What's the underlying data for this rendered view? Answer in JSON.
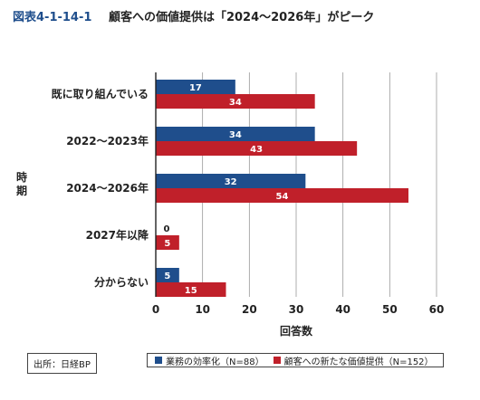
{
  "figure": {
    "id": "図表4-1-14-1",
    "title": "顧客への価値提供は「2024〜2026年」がピーク"
  },
  "chart_data": {
    "type": "bar",
    "orientation": "horizontal",
    "categories": [
      "既に取り組んでいる",
      "2022〜2023年",
      "2024〜2026年",
      "2027年以降",
      "分からない"
    ],
    "series": [
      {
        "name": "業務の効率化（N=88）",
        "values": [
          17,
          34,
          32,
          0,
          5
        ],
        "color": "#1f4e8c"
      },
      {
        "name": "顧客への新たな価値提供（N=152）",
        "values": [
          34,
          43,
          54,
          5,
          15
        ],
        "color": "#c0202a"
      }
    ],
    "xlabel": "回答数",
    "ylabel": "時期",
    "xlim": [
      0,
      60
    ],
    "xticks": [
      0,
      10,
      20,
      30,
      40,
      50,
      60
    ],
    "grid": true,
    "legend": "bottom"
  },
  "footer": {
    "source": "出所：日経BP"
  }
}
